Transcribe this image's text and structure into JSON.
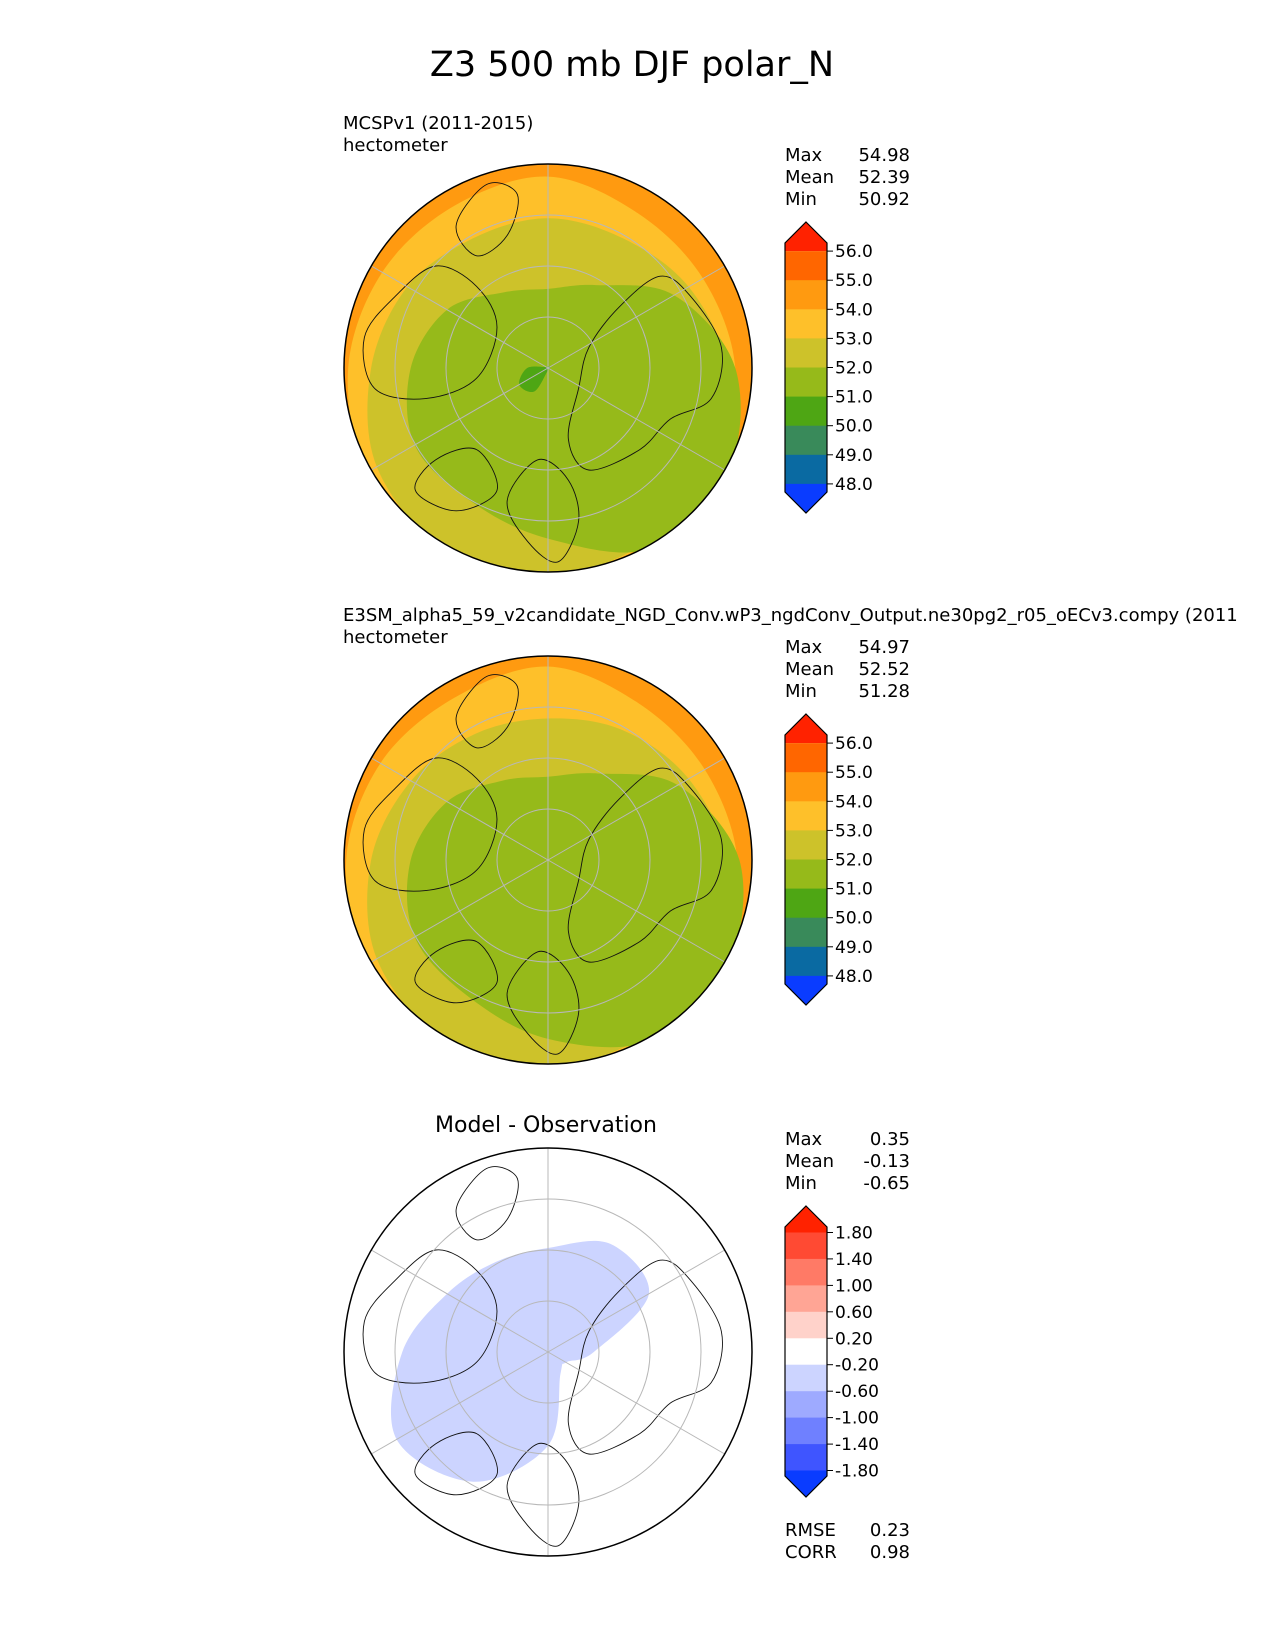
{
  "figure": {
    "title": "Z3 500 mb DJF polar_N"
  },
  "chart_data": [
    {
      "type": "heatmap",
      "projection": "north-polar-stereographic",
      "title": "",
      "subtitle_line1": "MCSPv1 (2011-2015)",
      "units": "hectometer",
      "stats": [
        {
          "label": "Max",
          "value": "54.98"
        },
        {
          "label": "Mean",
          "value": "52.39"
        },
        {
          "label": "Min",
          "value": "50.92"
        }
      ],
      "colorbar": {
        "ticks": [
          "56.0",
          "55.0",
          "54.0",
          "53.0",
          "52.0",
          "51.0",
          "50.0",
          "49.0",
          "48.0"
        ],
        "colors": [
          "#ff2200",
          "#ff6600",
          "#ff9a10",
          "#fec02a",
          "#cdc22a",
          "#96ba1a",
          "#4ea614",
          "#398a5a",
          "#0a6aa2",
          "#0a3cff"
        ],
        "extend": "both"
      },
      "contours": [
        {
          "level": 55.0,
          "color": "#ff9a10",
          "r": [
            0.98,
            0.95,
            0.94,
            0.96,
            0.99,
            1.0,
            1.0,
            1.0,
            1.0,
            0.99,
            0.97,
            0.96
          ]
        },
        {
          "level": 54.0,
          "color": "#fec02a",
          "r": [
            0.92,
            0.86,
            0.86,
            0.9,
            0.95,
            0.97,
            1.0,
            1.0,
            1.0,
            0.96,
            0.92,
            0.9
          ]
        },
        {
          "level": 53.0,
          "color": "#cdc22a",
          "r": [
            0.72,
            0.72,
            0.78,
            0.86,
            0.92,
            0.96,
            1.0,
            1.0,
            0.95,
            0.85,
            0.78,
            0.72
          ]
        },
        {
          "level": 52.0,
          "color": "#96ba1a",
          "r": [
            0.38,
            0.46,
            0.7,
            0.9,
            1.0,
            1.0,
            0.82,
            0.74,
            0.74,
            0.66,
            0.56,
            0.42
          ]
        },
        {
          "level": 51.0,
          "color": "#4ea614",
          "r": [
            0.0,
            0.0,
            0.0,
            0.0,
            0.0,
            0.0,
            0.0,
            0.13,
            0.16,
            0.1,
            0.0,
            0.0
          ]
        }
      ]
    },
    {
      "type": "heatmap",
      "projection": "north-polar-stereographic",
      "title": "",
      "subtitle_line1": "E3SM_alpha5_59_v2candidate_NGD_Conv.wP3_ngdConv_Output.ne30pg2_r05_oECv3.compy (2011",
      "units": "hectometer",
      "stats": [
        {
          "label": "Max",
          "value": "54.97"
        },
        {
          "label": "Mean",
          "value": "52.52"
        },
        {
          "label": "Min",
          "value": "51.28"
        }
      ],
      "colorbar": {
        "ticks": [
          "56.0",
          "55.0",
          "54.0",
          "53.0",
          "52.0",
          "51.0",
          "50.0",
          "49.0",
          "48.0"
        ],
        "colors": [
          "#ff2200",
          "#ff6600",
          "#ff9a10",
          "#fec02a",
          "#cdc22a",
          "#96ba1a",
          "#4ea614",
          "#398a5a",
          "#0a6aa2",
          "#0a3cff"
        ],
        "extend": "both"
      },
      "contours": [
        {
          "level": 55.0,
          "color": "#ff9a10",
          "r": [
            0.99,
            0.96,
            0.95,
            0.97,
            1.0,
            1.0,
            1.0,
            1.0,
            1.0,
            1.0,
            0.97,
            0.97
          ]
        },
        {
          "level": 54.0,
          "color": "#fec02a",
          "r": [
            0.93,
            0.87,
            0.87,
            0.91,
            0.96,
            0.98,
            1.0,
            1.0,
            1.0,
            0.97,
            0.93,
            0.9
          ]
        },
        {
          "level": 53.0,
          "color": "#cdc22a",
          "r": [
            0.68,
            0.72,
            0.78,
            0.86,
            0.92,
            0.96,
            1.0,
            1.0,
            0.95,
            0.85,
            0.76,
            0.7
          ]
        },
        {
          "level": 52.0,
          "color": "#96ba1a",
          "r": [
            0.4,
            0.48,
            0.72,
            0.92,
            1.0,
            1.0,
            0.86,
            0.76,
            0.74,
            0.66,
            0.56,
            0.44
          ]
        },
        {
          "level": 51.0,
          "color": "#4ea614",
          "r": [
            0.0,
            0.0,
            0.0,
            0.0,
            0.0,
            0.0,
            0.0,
            0.0,
            0.0,
            0.0,
            0.0,
            0.0
          ]
        }
      ]
    },
    {
      "type": "heatmap",
      "projection": "north-polar-stereographic",
      "title": "Model - Observation",
      "subtitle_line1": "",
      "units": "",
      "stats": [
        {
          "label": "Max",
          "value": "0.35"
        },
        {
          "label": "Mean",
          "value": "-0.13"
        },
        {
          "label": "Min",
          "value": "-0.65"
        }
      ],
      "extra_stats": [
        {
          "label": "RMSE",
          "value": "0.23"
        },
        {
          "label": "CORR",
          "value": "0.98"
        }
      ],
      "colorbar": {
        "ticks": [
          "1.80",
          "1.40",
          "1.00",
          "0.60",
          "0.20",
          "-0.20",
          "-0.60",
          "-1.00",
          "-1.40",
          "-1.80"
        ],
        "colors": [
          "#ff2200",
          "#ff4a33",
          "#ff7a66",
          "#ffa595",
          "#ffd2ca",
          "#ffffff",
          "#ccd4ff",
          "#9eaaff",
          "#6f80ff",
          "#3f55ff",
          "#0a3cff"
        ],
        "extend": "both"
      },
      "contours": [
        {
          "level": -0.2,
          "color": "#ccd4ff",
          "r": [
            0.5,
            0.6,
            0.56,
            0.22,
            0.1,
            0.12,
            0.45,
            0.72,
            0.84,
            0.7,
            0.56,
            0.5
          ]
        },
        {
          "level": -0.6,
          "color": "#9eaaff",
          "r": [
            0.0,
            0.0,
            0.0,
            0.0,
            0.0,
            0.0,
            0.0,
            0.0,
            0.0,
            0.0,
            0.0,
            0.0
          ]
        }
      ]
    }
  ]
}
